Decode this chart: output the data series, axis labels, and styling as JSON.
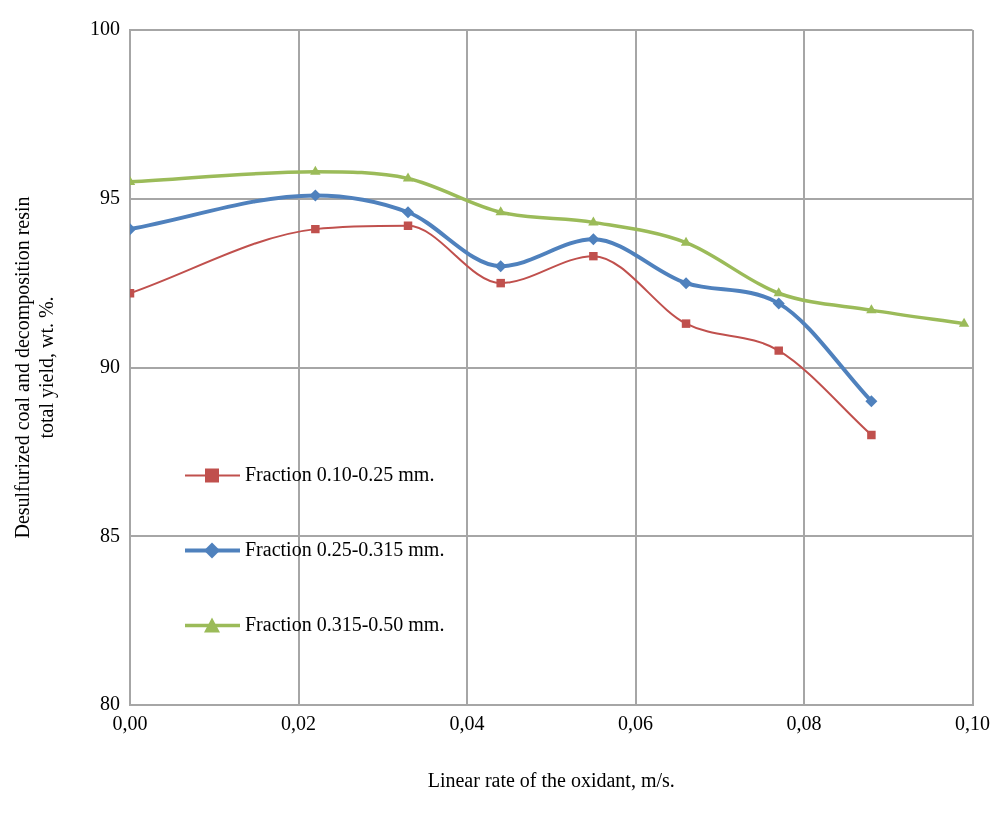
{
  "chart_data": {
    "type": "line",
    "xlabel": "Linear rate of the oxidant, m/s.",
    "ylabel": "Desulfurized coal and decomposition resin total yield, wt. %.",
    "x": [
      0,
      0.022,
      0.033,
      0.044,
      0.055,
      0.066,
      0.077,
      0.088,
      0.099
    ],
    "series": [
      {
        "name": "Fraction 0.10-0.25 mm.",
        "color": "#c0504d",
        "marker": "square",
        "values": [
          92.2,
          94.1,
          94.2,
          92.5,
          93.3,
          91.3,
          90.5,
          88.0,
          null
        ]
      },
      {
        "name": "Fraction 0.25-0.315 mm.",
        "color": "#4f81bd",
        "marker": "diamond",
        "values": [
          94.1,
          95.1,
          94.6,
          93.0,
          93.8,
          92.5,
          91.9,
          89.0,
          null
        ]
      },
      {
        "name": "Fraction 0.315-0.50 mm.",
        "color": "#9bbb59",
        "marker": "triangle",
        "values": [
          95.5,
          95.8,
          95.6,
          94.6,
          94.3,
          93.7,
          92.2,
          91.7,
          91.3
        ]
      }
    ],
    "xlim": [
      0,
      0.1
    ],
    "xticks": [
      {
        "value": 0,
        "label": "0,00"
      },
      {
        "value": 0.02,
        "label": "0,02"
      },
      {
        "value": 0.04,
        "label": "0,04"
      },
      {
        "value": 0.06,
        "label": "0,06"
      },
      {
        "value": 0.08,
        "label": "0,08"
      },
      {
        "value": 0.1,
        "label": "0,10"
      }
    ],
    "ylim": [
      80,
      100
    ],
    "yticks": [
      80,
      85,
      90,
      95,
      100
    ],
    "grid": true,
    "legend": "left",
    "line_style": "solid"
  }
}
